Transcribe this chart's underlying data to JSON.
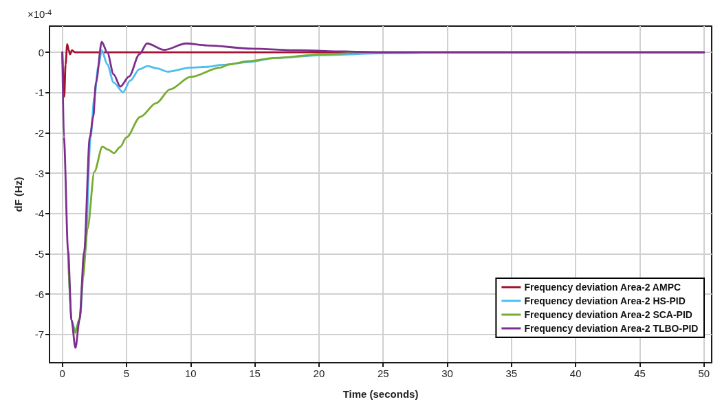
{
  "chart_data": {
    "type": "line",
    "xlabel": "Time (seconds)",
    "ylabel": "dF (Hz)",
    "annotations": [
      "×10$^{-4}$"
    ],
    "xlim": [
      -1,
      50.6
    ],
    "ylim": [
      -7.7,
      0.65
    ],
    "xticks": [
      0,
      5,
      10,
      15,
      20,
      25,
      30,
      35,
      40,
      45,
      50
    ],
    "yticks": [
      -7,
      -6,
      -5,
      -4,
      -3,
      -2,
      -1,
      0
    ],
    "grid": true,
    "legend": "bottom right",
    "marker": "none",
    "line_style": "solid",
    "series": [
      {
        "name": "Frequency deviation Area-2 AMPC",
        "color": "#a2142f",
        "x": [
          0,
          0.15,
          0.25,
          0.38,
          0.5,
          0.6,
          0.75,
          1,
          1.5,
          50
        ],
        "values": [
          0,
          -1.1,
          -0.3,
          0.2,
          0.05,
          -0.05,
          0.05,
          0,
          0,
          0
        ]
      },
      {
        "name": "Frequency deviation Area-2 HS-PID",
        "color": "#4dbeee",
        "x": [
          0.45,
          0.71,
          1.0,
          1.34,
          1.79,
          2.2,
          2.5,
          2.8,
          3.07,
          3.5,
          4.0,
          4.73,
          5.3,
          6.0,
          6.64,
          7.4,
          8.2,
          10,
          11.25,
          12.5,
          14.5,
          16.6,
          20.2,
          25.5,
          30,
          50
        ],
        "values": [
          -4.94,
          -6.64,
          -6.9,
          -6.64,
          -4.94,
          -2.11,
          -1.1,
          -0.35,
          0.05,
          -0.3,
          -0.75,
          -0.99,
          -0.7,
          -0.42,
          -0.34,
          -0.4,
          -0.48,
          -0.38,
          -0.36,
          -0.31,
          -0.24,
          -0.14,
          -0.07,
          -0.02,
          0,
          0
        ]
      },
      {
        "name": "Frequency deviation Area-2 SCA-PID",
        "color": "#77ac30",
        "x": [
          0.45,
          0.71,
          1.0,
          1.34,
          1.6,
          1.96,
          2.5,
          3.12,
          3.6,
          4.02,
          4.5,
          5.0,
          6.07,
          7.32,
          8.39,
          10,
          12.3,
          13.0,
          14.5,
          16.6,
          20.2,
          24,
          30,
          50
        ],
        "values": [
          -4.94,
          -6.64,
          -6.96,
          -6.6,
          -5.6,
          -4.38,
          -2.96,
          -2.34,
          -2.42,
          -2.5,
          -2.35,
          -2.11,
          -1.6,
          -1.26,
          -0.92,
          -0.61,
          -0.38,
          -0.3,
          -0.22,
          -0.14,
          -0.05,
          0,
          0,
          0
        ]
      },
      {
        "name": "Frequency deviation Area-2 TLBO-PID",
        "color": "#7e2f8e",
        "x": [
          0,
          0.12,
          0.45,
          0.71,
          1.02,
          1.34,
          1.7,
          2.14,
          2.41,
          2.62,
          3.07,
          3.5,
          4.0,
          4.52,
          5.2,
          6.0,
          6.6,
          7.95,
          9.64,
          11.25,
          14.8,
          18.4,
          22,
          25,
          30,
          50
        ],
        "values": [
          0,
          -2.1,
          -4.94,
          -6.64,
          -7.33,
          -6.64,
          -4.94,
          -2.11,
          -1.6,
          -0.75,
          0.26,
          0.0,
          -0.55,
          -0.85,
          -0.6,
          -0.05,
          0.22,
          0.06,
          0.22,
          0.17,
          0.09,
          0.05,
          0.02,
          0,
          0,
          0
        ]
      }
    ]
  }
}
